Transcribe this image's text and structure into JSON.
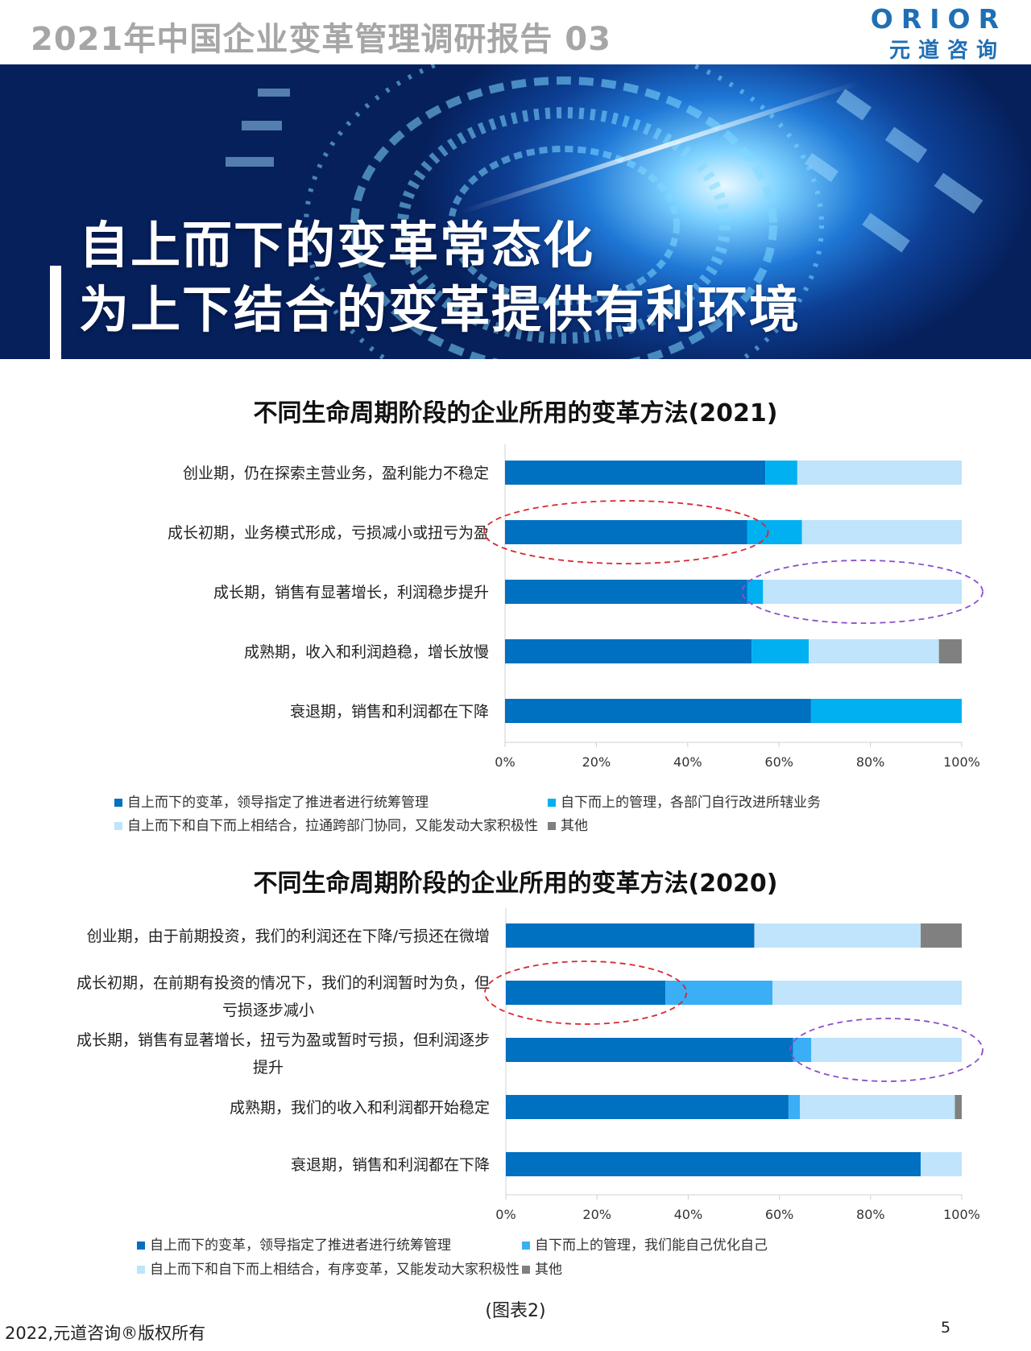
{
  "header": {
    "report_title": "2021年中国企业变革管理调研报告 03",
    "logo_top": "ORIOR",
    "logo_bottom": "元道咨询"
  },
  "banner": {
    "headline_line1": "自上而下的变革常态化",
    "headline_line2": "为上下结合的变革提供有利环境"
  },
  "colors": {
    "series1": "#0070c0",
    "series2": "#00b0f0",
    "series2_alt": "#3aaff5",
    "series3": "#bfe4fb",
    "series4": "#808080",
    "red_ellipse": "#d9282f",
    "purple_ellipse": "#8b4fc9"
  },
  "chart_data": [
    {
      "type": "bar",
      "orientation": "horizontal",
      "stacked": "percent",
      "title": "不同生命周期阶段的企业所用的变革方法(2021)",
      "categories": [
        "创业期，仍在探索主营业务，盈利能力不稳定",
        "成长初期，业务模式形成，亏损减小或扭亏为盈",
        "成长期，销售有显著增长，利润稳步提升",
        "成熟期，收入和利润趋稳，增长放慢",
        "衰退期，销售和利润都在下降"
      ],
      "series": [
        {
          "name": "自上而下的变革，领导指定了推进者进行统筹管理",
          "values": [
            57,
            53,
            53,
            54,
            67
          ]
        },
        {
          "name": "自下而上的管理，各部门自行改进所辖业务",
          "values": [
            7,
            12,
            3.5,
            12.5,
            33
          ]
        },
        {
          "name": "自上而下和自下而上相结合，拉通跨部门协同，又能发动大家积极性",
          "values": [
            36,
            35,
            43.5,
            28.5,
            0
          ]
        },
        {
          "name": "其他",
          "values": [
            0,
            0,
            0,
            5,
            0
          ]
        }
      ],
      "xlim": [
        0,
        100
      ],
      "xticks": [
        "0%",
        "20%",
        "40%",
        "60%",
        "80%",
        "100%"
      ],
      "legend_position": "bottom",
      "annotations": [
        {
          "shape": "ellipse",
          "color": "red",
          "category_index": 1,
          "series_index": 0
        },
        {
          "shape": "ellipse",
          "color": "purple",
          "category_index": 2,
          "series_index": 2
        }
      ]
    },
    {
      "type": "bar",
      "orientation": "horizontal",
      "stacked": "percent",
      "title": "不同生命周期阶段的企业所用的变革方法(2020)",
      "categories": [
        "创业期，由于前期投资，我们的利润还在下降/亏损还在微增",
        "成长初期，在前期有投资的情况下，我们的利润暂时为负，但亏损逐步减小",
        "成长期，销售有显著增长，扭亏为盈或暂时亏损，但利润逐步提升",
        "成熟期，我们的收入和利润都开始稳定",
        "衰退期，销售和利润都在下降"
      ],
      "category_lines": [
        [
          "创业期，由于前期投资，我们的利润还在下降/亏损还在微增"
        ],
        [
          "成长初期，在前期有投资的情况下，我们的利润暂时为负，但",
          "亏损逐步减小"
        ],
        [
          "成长期，销售有显著增长，扭亏为盈或暂时亏损，但利润逐步",
          "提升"
        ],
        [
          "成熟期，我们的收入和利润都开始稳定"
        ],
        [
          "衰退期，销售和利润都在下降"
        ]
      ],
      "series": [
        {
          "name": "自上而下的变革，领导指定了推进者进行统筹管理",
          "values": [
            54.5,
            35,
            63,
            62,
            91
          ]
        },
        {
          "name": "自下而上的管理，我们能自己优化自己",
          "values": [
            0,
            23.5,
            4,
            2.5,
            0
          ]
        },
        {
          "name": "自上而下和自下而上相结合，有序变革，又能发动大家积极性",
          "values": [
            36.5,
            41.5,
            33,
            34,
            9
          ]
        },
        {
          "name": "其他",
          "values": [
            9,
            0,
            0,
            1.5,
            0
          ]
        }
      ],
      "xlim": [
        0,
        100
      ],
      "xticks": [
        "0%",
        "20%",
        "40%",
        "60%",
        "80%",
        "100%"
      ],
      "legend_position": "bottom",
      "annotations": [
        {
          "shape": "ellipse",
          "color": "red",
          "category_index": 1,
          "series_index": 0
        },
        {
          "shape": "ellipse",
          "color": "purple",
          "category_index": 2,
          "series_index": 2
        }
      ]
    }
  ],
  "footer": {
    "caption": "(图表2)",
    "copyright": "2022,元道咨询®版权所有",
    "page_number": "5"
  }
}
